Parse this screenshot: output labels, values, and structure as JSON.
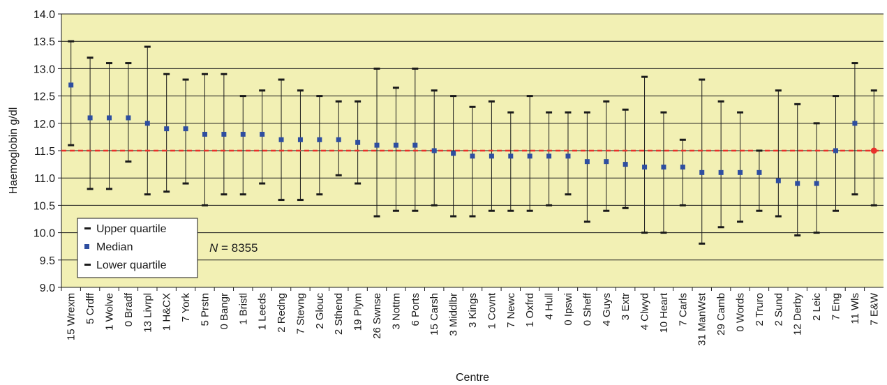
{
  "chart_data": {
    "type": "scatter",
    "xlabel": "Centre",
    "ylabel": "Haemoglobin g/dl",
    "ylim": [
      9.0,
      14.0
    ],
    "yticks": [
      "9.0",
      "9.5",
      "10.0",
      "10.5",
      "11.0",
      "11.5",
      "12.0",
      "12.5",
      "13.0",
      "13.5",
      "14.0"
    ],
    "grid": true,
    "reference_line": 11.5,
    "annotation": {
      "italic": "N",
      "rest": " = 8355"
    },
    "legend": {
      "position": "bottom-left",
      "items": [
        "Upper quartile",
        "Median",
        "Lower quartile"
      ]
    },
    "colors": {
      "background": "#f2f0b4",
      "median": "#2e4ea0",
      "quartile": "#1a1a1a",
      "reference_line": "#e8312b",
      "grid": "#1a1a1a"
    },
    "categories": [
      "15 Wrexm",
      "5 Crdff",
      "1 Wolve",
      "0 Bradf",
      "13 Livrpl",
      "1 H&CX",
      "7 York",
      "5 Prstn",
      "0 Bangr",
      "1 Bristl",
      "1 Leeds",
      "2 Redng",
      "7 Stevng",
      "2 Glouc",
      "2 Sthend",
      "19 Plym",
      "26 Swnse",
      "3 Nottm",
      "6 Ports",
      "15 Carsh",
      "3 Middlbr",
      "3 Kings",
      "1 Covnt",
      "7 Newc",
      "1 Oxfrd",
      "4 Hull",
      "0 Ipswi",
      "0 Sheff",
      "4 Guys",
      "3 Extr",
      "4 Clwyd",
      "10 Heart",
      "7 Carls",
      "31 ManWst",
      "29 Camb",
      "0 Words",
      "2 Truro",
      "2 Sund",
      "12 Derby",
      "2 Leic",
      "7 Eng",
      "11 Wls",
      "7 E&W"
    ],
    "series": [
      {
        "name": "Upper quartile",
        "values": [
          13.5,
          13.2,
          13.1,
          13.1,
          13.4,
          12.9,
          12.8,
          12.9,
          12.9,
          12.5,
          12.6,
          12.8,
          12.6,
          12.5,
          12.4,
          12.4,
          13.0,
          12.65,
          13.0,
          12.6,
          12.5,
          12.3,
          12.4,
          12.2,
          12.5,
          12.2,
          12.2,
          12.2,
          12.4,
          12.25,
          12.85,
          12.2,
          11.7,
          12.8,
          12.4,
          12.2,
          11.5,
          12.6,
          12.35,
          12.0,
          12.5,
          13.1,
          12.6
        ]
      },
      {
        "name": "Median",
        "values": [
          12.7,
          12.1,
          12.1,
          12.1,
          12.0,
          11.9,
          11.9,
          11.8,
          11.8,
          11.8,
          11.8,
          11.7,
          11.7,
          11.7,
          11.7,
          11.65,
          11.6,
          11.6,
          11.6,
          11.5,
          11.45,
          11.4,
          11.4,
          11.4,
          11.4,
          11.4,
          11.4,
          11.3,
          11.3,
          11.25,
          11.2,
          11.2,
          11.2,
          11.1,
          11.1,
          11.1,
          11.1,
          10.95,
          10.9,
          10.9,
          11.5,
          12.0,
          11.5
        ]
      },
      {
        "name": "Lower quartile",
        "values": [
          11.6,
          10.8,
          10.8,
          11.3,
          10.7,
          10.75,
          10.9,
          10.5,
          10.7,
          10.7,
          10.9,
          10.6,
          10.6,
          10.7,
          11.05,
          10.9,
          10.3,
          10.4,
          10.4,
          10.5,
          10.3,
          10.3,
          10.4,
          10.4,
          10.4,
          10.5,
          10.7,
          10.2,
          10.4,
          10.45,
          10.0,
          10.0,
          10.5,
          9.8,
          10.1,
          10.2,
          10.4,
          10.3,
          9.95,
          10.0,
          10.4,
          10.7,
          10.5
        ]
      }
    ]
  }
}
